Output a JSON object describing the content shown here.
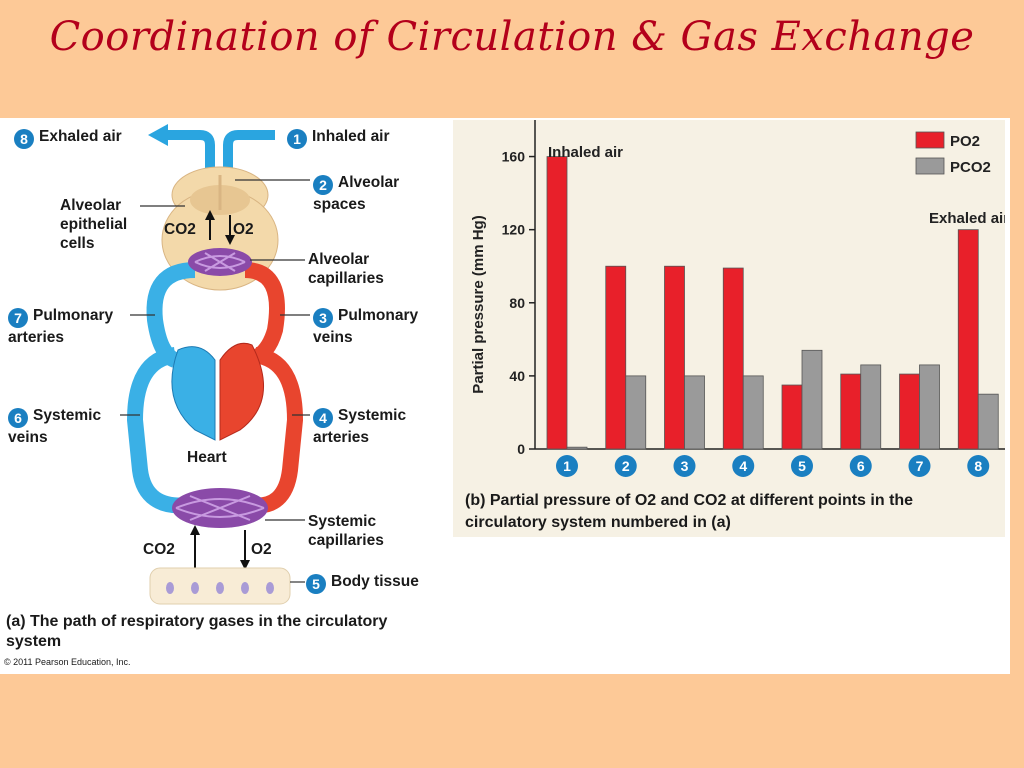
{
  "title": "Coordination of Circulation & Gas Exchange",
  "diagram": {
    "labels": {
      "exhaled_air": {
        "num": "8",
        "text": "Exhaled air"
      },
      "inhaled_air": {
        "num": "1",
        "text": "Inhaled air"
      },
      "alveolar_spaces": {
        "num": "2",
        "text": "Alveolar spaces"
      },
      "alveolar_epithelial": {
        "text": "Alveolar epithelial cells"
      },
      "alveolar_capillaries": {
        "text": "Alveolar capillaries"
      },
      "pulmonary_arteries": {
        "num": "7",
        "text": "Pulmonary arteries"
      },
      "pulmonary_veins": {
        "num": "3",
        "text": "Pulmonary veins"
      },
      "systemic_veins": {
        "num": "6",
        "text": "Systemic veins"
      },
      "systemic_arteries": {
        "num": "4",
        "text": "Systemic arteries"
      },
      "heart": {
        "text": "Heart"
      },
      "systemic_capillaries": {
        "text": "Systemic capillaries"
      },
      "body_tissue": {
        "num": "5",
        "text": "Body tissue"
      },
      "co2_top": "CO2",
      "o2_top": "O2",
      "co2_bottom": "CO2",
      "o2_bottom": "O2"
    },
    "caption_a": "(a) The path of respiratory gases in the circulatory system",
    "copyright": "© 2011 Pearson Education, Inc."
  },
  "chart_data": {
    "type": "bar",
    "categories": [
      "1",
      "2",
      "3",
      "4",
      "5",
      "6",
      "7",
      "8"
    ],
    "series": [
      {
        "name": "PO2",
        "color": "#e8202a",
        "values": [
          160,
          100,
          100,
          99,
          35,
          41,
          41,
          120
        ]
      },
      {
        "name": "PCO2",
        "color": "#9a9a9a",
        "values": [
          1,
          40,
          40,
          40,
          54,
          46,
          46,
          30
        ]
      }
    ],
    "ylabel": "Partial pressure (mm Hg)",
    "yticks": [
      0,
      40,
      80,
      120,
      160
    ],
    "ylim": [
      0,
      180
    ],
    "annotations": [
      "Inhaled air",
      "Exhaled air"
    ],
    "legend": "top-right",
    "caption": "(b) Partial pressure of O2 and CO2 at different points in the circulatory system numbered in (a)"
  }
}
